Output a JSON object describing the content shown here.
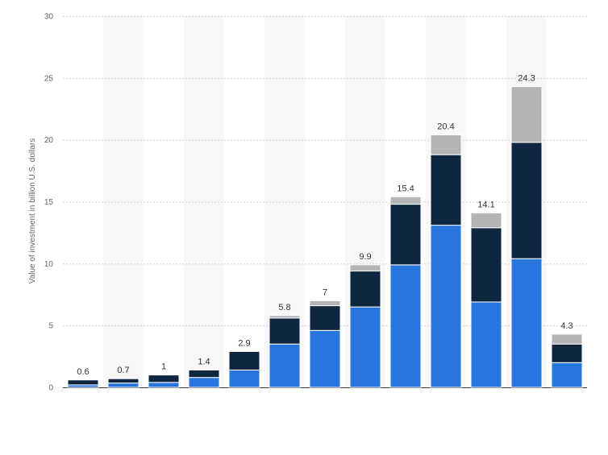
{
  "chart_data": {
    "type": "bar",
    "stacked": true,
    "ylabel": "Value of investment in billion U.S. dollars",
    "ylim": [
      0,
      30
    ],
    "yticks": [
      0,
      5,
      10,
      15,
      20,
      25,
      30
    ],
    "grid": true,
    "categories": [
      "",
      "",
      "",
      "",
      "",
      "",
      "",
      "",
      "",
      "",
      "",
      "",
      ""
    ],
    "series": [
      {
        "color": "#2876dd",
        "values": [
          0.2,
          0.35,
          0.4,
          0.8,
          1.4,
          3.5,
          4.6,
          6.5,
          9.9,
          13.1,
          6.9,
          10.4,
          2.0
        ]
      },
      {
        "color": "#0f2641",
        "values": [
          0.4,
          0.35,
          0.6,
          0.6,
          1.5,
          2.1,
          2.0,
          2.9,
          4.9,
          5.7,
          6.0,
          9.4,
          1.5
        ]
      },
      {
        "color": "#b4b4b4",
        "values": [
          0,
          0,
          0,
          0,
          0,
          0.2,
          0.4,
          0.5,
          0.6,
          1.6,
          1.2,
          4.5,
          0.8
        ]
      }
    ],
    "totals": [
      "0.6",
      "0.7",
      "1",
      "1.4",
      "2.9",
      "5.8",
      "7",
      "9.9",
      "15.4",
      "20.4",
      "14.1",
      "24.3",
      "4.3"
    ]
  }
}
